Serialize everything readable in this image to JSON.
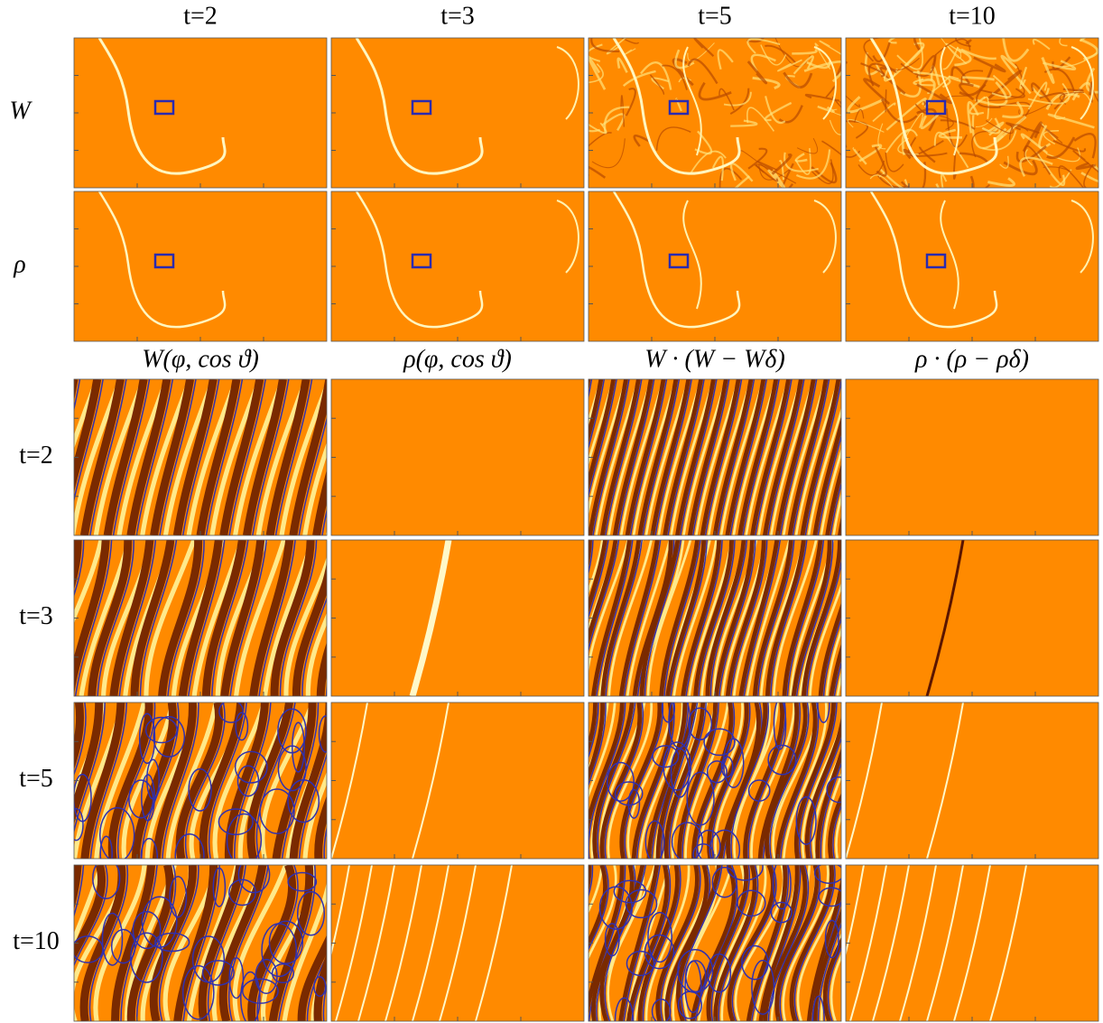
{
  "top": {
    "column_labels": [
      "t=2",
      "t=3",
      "t=5",
      "t=10"
    ],
    "row_labels": [
      "W",
      "ρ"
    ]
  },
  "bottom": {
    "column_labels": [
      "W(φ, cos ϑ)",
      "ρ(φ, cos ϑ)",
      "W · (W − Wδ)",
      "ρ · (ρ − ρδ)"
    ],
    "row_labels": [
      "t=2",
      "t=3",
      "t=5",
      "t=10"
    ]
  }
}
